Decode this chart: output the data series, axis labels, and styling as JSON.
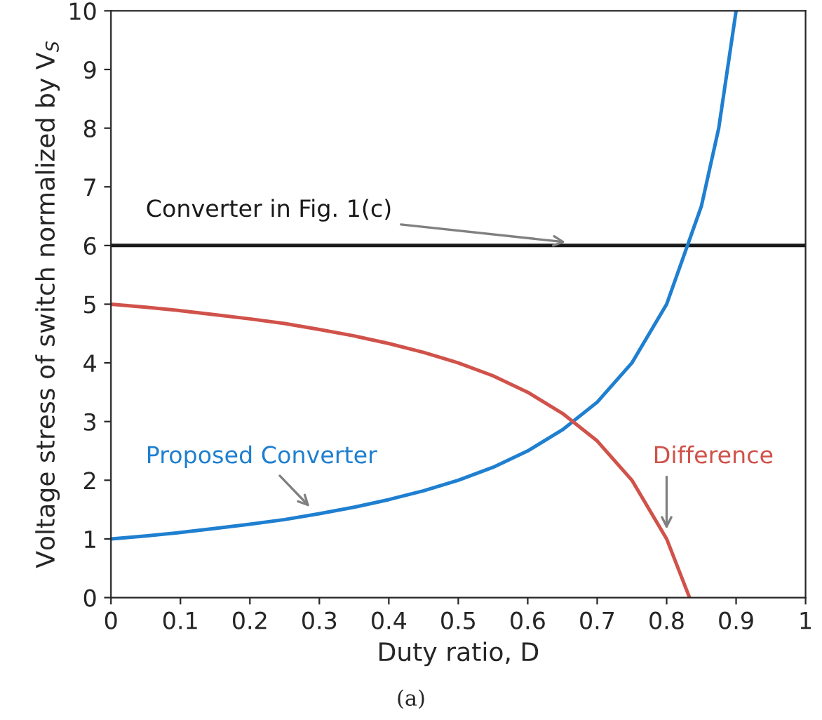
{
  "chart_data": {
    "type": "line",
    "xlabel": "Duty ratio, D",
    "ylabel": "Voltage stress of switch normalized by V$_{S}$",
    "series": [
      {
        "name": "Converter in Fig. 1(c)",
        "color": "#1a1a1a",
        "x": [
          0,
          1
        ],
        "values": [
          6,
          6
        ]
      },
      {
        "name": "Proposed Converter",
        "color": "#1f7fd0",
        "x": [
          0,
          0.05,
          0.1,
          0.15,
          0.2,
          0.25,
          0.3,
          0.35,
          0.4,
          0.45,
          0.5,
          0.55,
          0.6,
          0.65,
          0.7,
          0.75,
          0.8,
          0.85,
          0.875,
          0.9
        ],
        "values": [
          1,
          1.05,
          1.11,
          1.18,
          1.25,
          1.33,
          1.43,
          1.54,
          1.67,
          1.82,
          2,
          2.22,
          2.5,
          2.86,
          3.33,
          4,
          5,
          6.67,
          8,
          10
        ]
      },
      {
        "name": "Difference",
        "color": "#d0524a",
        "x": [
          0,
          0.05,
          0.1,
          0.15,
          0.2,
          0.25,
          0.3,
          0.35,
          0.4,
          0.45,
          0.5,
          0.55,
          0.6,
          0.65,
          0.7,
          0.75,
          0.8,
          0.833
        ],
        "values": [
          5,
          4.95,
          4.89,
          4.82,
          4.75,
          4.67,
          4.57,
          4.46,
          4.33,
          4.18,
          4,
          3.78,
          3.5,
          3.14,
          2.67,
          2,
          1,
          0
        ]
      }
    ],
    "xlim": [
      0,
      1
    ],
    "xticks": [
      0,
      0.1,
      0.2,
      0.3,
      0.4,
      0.5,
      0.6,
      0.7,
      0.8,
      0.9,
      1
    ],
    "ylim": [
      0,
      10
    ],
    "yticks": [
      0,
      1,
      2,
      3,
      4,
      5,
      6,
      7,
      8,
      9,
      10
    ],
    "annotations": [
      "(a)"
    ],
    "grid": false,
    "legend": false,
    "marker": "none",
    "line_style": "solid"
  }
}
